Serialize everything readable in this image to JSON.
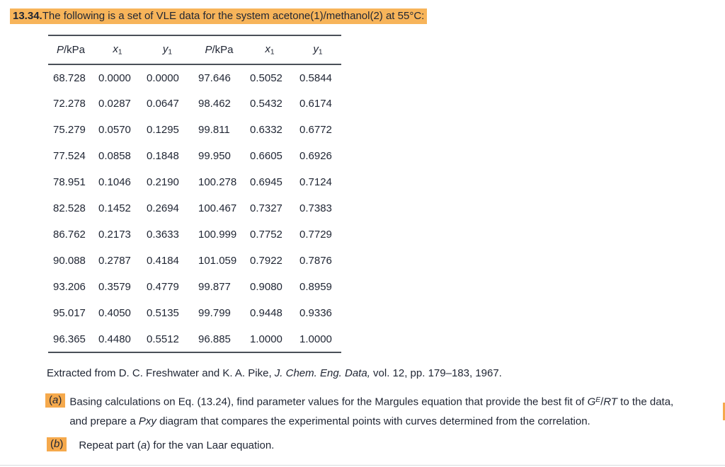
{
  "title": {
    "number": "13.34.",
    "text": "The following is a set of VLE data for the system acetone(1)/methanol(2) at 55°C:"
  },
  "table": {
    "headers": [
      [
        {
          "t": "P",
          "i": true
        },
        {
          "t": "/kPa"
        }
      ],
      [
        {
          "t": "x",
          "i": true
        },
        {
          "t": "1",
          "sub": true
        }
      ],
      [
        {
          "t": "y",
          "i": true
        },
        {
          "t": "1",
          "sub": true
        }
      ],
      [
        {
          "t": "P",
          "i": true
        },
        {
          "t": "/kPa"
        }
      ],
      [
        {
          "t": "x",
          "i": true
        },
        {
          "t": "1",
          "sub": true
        }
      ],
      [
        {
          "t": "y",
          "i": true
        },
        {
          "t": "1",
          "sub": true
        }
      ]
    ],
    "rows": [
      [
        "68.728",
        "0.0000",
        "0.0000",
        "97.646",
        "0.5052",
        "0.5844"
      ],
      [
        "72.278",
        "0.0287",
        "0.0647",
        "98.462",
        "0.5432",
        "0.6174"
      ],
      [
        "75.279",
        "0.0570",
        "0.1295",
        "99.811",
        "0.6332",
        "0.6772"
      ],
      [
        "77.524",
        "0.0858",
        "0.1848",
        "99.950",
        "0.6605",
        "0.6926"
      ],
      [
        "78.951",
        "0.1046",
        "0.2190",
        "100.278",
        "0.6945",
        "0.7124"
      ],
      [
        "82.528",
        "0.1452",
        "0.2694",
        "100.467",
        "0.7327",
        "0.7383"
      ],
      [
        "86.762",
        "0.2173",
        "0.3633",
        "100.999",
        "0.7752",
        "0.7729"
      ],
      [
        "90.088",
        "0.2787",
        "0.4184",
        "101.059",
        "0.7922",
        "0.7876"
      ],
      [
        "93.206",
        "0.3579",
        "0.4779",
        "99.877",
        "0.9080",
        "0.8959"
      ],
      [
        "95.017",
        "0.4050",
        "0.5135",
        "99.799",
        "0.9448",
        "0.9336"
      ],
      [
        "96.365",
        "0.4480",
        "0.5512",
        "96.885",
        "1.0000",
        "1.0000"
      ]
    ]
  },
  "citation": [
    {
      "t": "Extracted from D. C. Freshwater and K. A. Pike, "
    },
    {
      "t": "J. Chem. Eng. Data,",
      "i": true
    },
    {
      "t": " vol. 12, pp. 179–183, 1967."
    }
  ],
  "parts": [
    {
      "marker": [
        {
          "t": "("
        },
        {
          "t": "a",
          "i": true
        },
        {
          "t": ")"
        }
      ],
      "line1": [
        {
          "t": "Basing calculations on Eq. (13.24), find parameter values for the Margules equation that provide the best fit of "
        },
        {
          "t": "G",
          "i": true
        },
        {
          "t": "E",
          "i": true,
          "sup": true
        },
        {
          "t": "/"
        },
        {
          "t": "RT",
          "i": true
        },
        {
          "t": " to the data,"
        }
      ],
      "line2": [
        {
          "t": "and prepare a "
        },
        {
          "t": "Pxy",
          "i": true
        },
        {
          "t": " diagram that compares the experimental points with curves determined from the correlation."
        }
      ]
    },
    {
      "marker": [
        {
          "t": "("
        },
        {
          "t": "b",
          "i": true
        },
        {
          "t": ")"
        }
      ],
      "line1": [
        {
          "t": "Repeat part ("
        },
        {
          "t": "a",
          "i": true
        },
        {
          "t": ") for the van Laar equation."
        }
      ]
    }
  ],
  "colors": {
    "hl1": "#F7B45A",
    "hl2": "#F5A94C",
    "rule": "#4a5058",
    "divider": "#d9dbde",
    "text": "#1f2533"
  }
}
